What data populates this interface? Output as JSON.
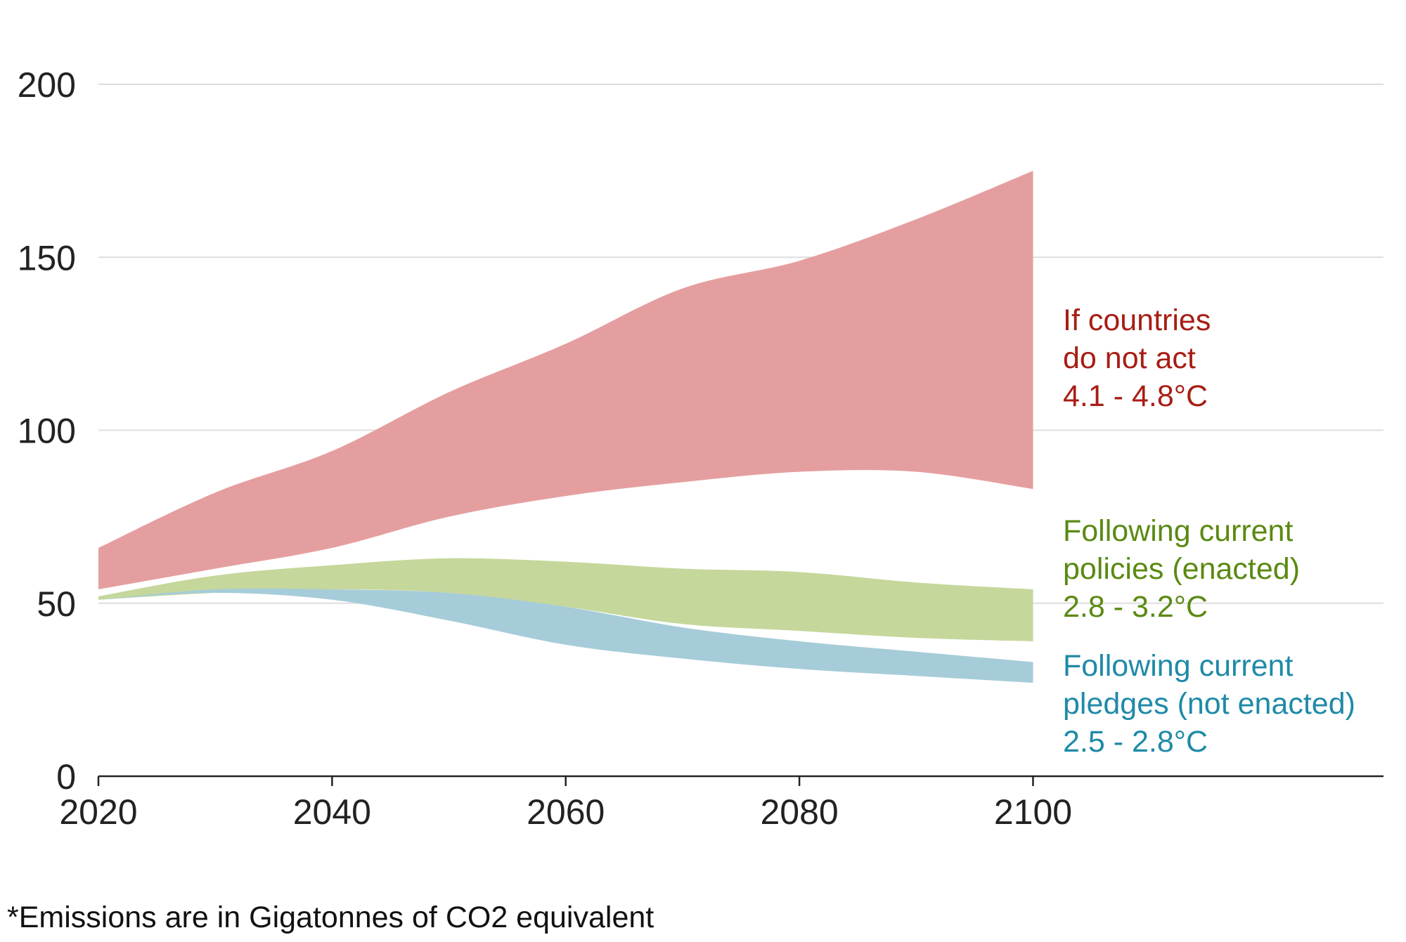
{
  "chart_data": {
    "type": "area",
    "x_axis": {
      "ticks": [
        2020,
        2040,
        2060,
        2080,
        2100
      ],
      "range": [
        2020,
        2130
      ]
    },
    "y_axis": {
      "ticks": [
        0,
        50,
        100,
        150,
        200
      ],
      "range": [
        0,
        200
      ]
    },
    "grid": true,
    "series": [
      {
        "label_lines": [
          "If countries",
          "do not act",
          "4.1 - 4.8°C"
        ],
        "color": "#e59e9f",
        "label_color": "#a81d14",
        "band": [
          {
            "x": 2020,
            "low": 54,
            "high": 66
          },
          {
            "x": 2030,
            "low": 60,
            "high": 82
          },
          {
            "x": 2040,
            "low": 66,
            "high": 94
          },
          {
            "x": 2050,
            "low": 75,
            "high": 111
          },
          {
            "x": 2060,
            "low": 81,
            "high": 125
          },
          {
            "x": 2070,
            "low": 85,
            "high": 141
          },
          {
            "x": 2080,
            "low": 88,
            "high": 149
          },
          {
            "x": 2090,
            "low": 88,
            "high": 161
          },
          {
            "x": 2100,
            "low": 83,
            "high": 175
          }
        ]
      },
      {
        "label_lines": [
          "Following current",
          "policies (enacted)",
          "2.8 - 3.2°C"
        ],
        "color": "#c5d79b",
        "label_color": "#5a8a12",
        "band": [
          {
            "x": 2020,
            "low": 51,
            "high": 52
          },
          {
            "x": 2030,
            "low": 53,
            "high": 58
          },
          {
            "x": 2040,
            "low": 54,
            "high": 61
          },
          {
            "x": 2050,
            "low": 53,
            "high": 63
          },
          {
            "x": 2060,
            "low": 49,
            "high": 62
          },
          {
            "x": 2070,
            "low": 44,
            "high": 60
          },
          {
            "x": 2080,
            "low": 42,
            "high": 59
          },
          {
            "x": 2090,
            "low": 40,
            "high": 56
          },
          {
            "x": 2100,
            "low": 39,
            "high": 54
          }
        ]
      },
      {
        "label_lines": [
          "Following current",
          "pledges (not enacted)",
          "2.5 - 2.8°C"
        ],
        "color": "#a6ccd9",
        "label_color": "#1f8aa7",
        "band": [
          {
            "x": 2020,
            "low": 51,
            "high": 51
          },
          {
            "x": 2030,
            "low": 53,
            "high": 54
          },
          {
            "x": 2040,
            "low": 51,
            "high": 54
          },
          {
            "x": 2050,
            "low": 45,
            "high": 53
          },
          {
            "x": 2060,
            "low": 38,
            "high": 49
          },
          {
            "x": 2070,
            "low": 34,
            "high": 43
          },
          {
            "x": 2080,
            "low": 31,
            "high": 39
          },
          {
            "x": 2090,
            "low": 29,
            "high": 36
          },
          {
            "x": 2100,
            "low": 27,
            "high": 33
          }
        ]
      }
    ]
  },
  "footnote": "*Emissions are in Gigatonnes of CO2 equivalent"
}
